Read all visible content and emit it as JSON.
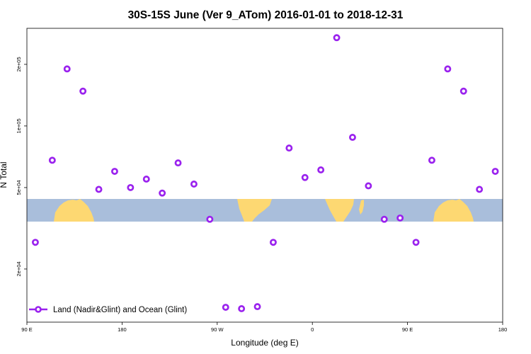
{
  "chart_data": {
    "type": "scatter",
    "title": "30S-15S June (Ver 9_ATom)   2016-01-01 to 2018-12-31",
    "xlabel": "Longitude (deg E)",
    "ylabel": "N Total",
    "y_scale": "log",
    "xlim": [
      90,
      540
    ],
    "ylim": [
      11000,
      300000
    ],
    "x_ticks": [
      {
        "value": 90,
        "label": "90 E"
      },
      {
        "value": 180,
        "label": "180"
      },
      {
        "value": 270,
        "label": "90 W"
      },
      {
        "value": 360,
        "label": "0"
      },
      {
        "value": 450,
        "label": "90 E"
      },
      {
        "value": 540,
        "label": "180"
      }
    ],
    "y_ticks": [
      {
        "value": 20000,
        "label": "2e+04"
      },
      {
        "value": 50000,
        "label": "5e+04"
      },
      {
        "value": 100000,
        "label": "1e+05"
      },
      {
        "value": 200000,
        "label": "2e+05"
      }
    ],
    "marker_color": "#9a22ee",
    "land_color": "#fdd872",
    "ocean_color": "#a9bedb",
    "legend": {
      "position": "bottom-left"
    },
    "series": [
      {
        "name": "Land (Nadir&Glint) and Ocean (Glint)",
        "x": [
          98,
          114,
          128,
          143,
          158,
          173,
          188,
          203,
          218,
          233,
          248,
          263,
          278,
          293,
          308,
          323,
          338,
          353,
          368,
          383,
          398,
          413,
          428,
          443,
          458,
          473,
          488,
          503,
          518,
          533
        ],
        "y": [
          27000,
          68000,
          190000,
          148000,
          49000,
          60000,
          50000,
          55000,
          47000,
          66000,
          52000,
          35000,
          13000,
          12800,
          13100,
          27000,
          78000,
          56000,
          61000,
          270000,
          88000,
          51000,
          35000,
          35500,
          27000,
          68000,
          190000,
          148000,
          49000,
          60000
        ]
      }
    ]
  }
}
